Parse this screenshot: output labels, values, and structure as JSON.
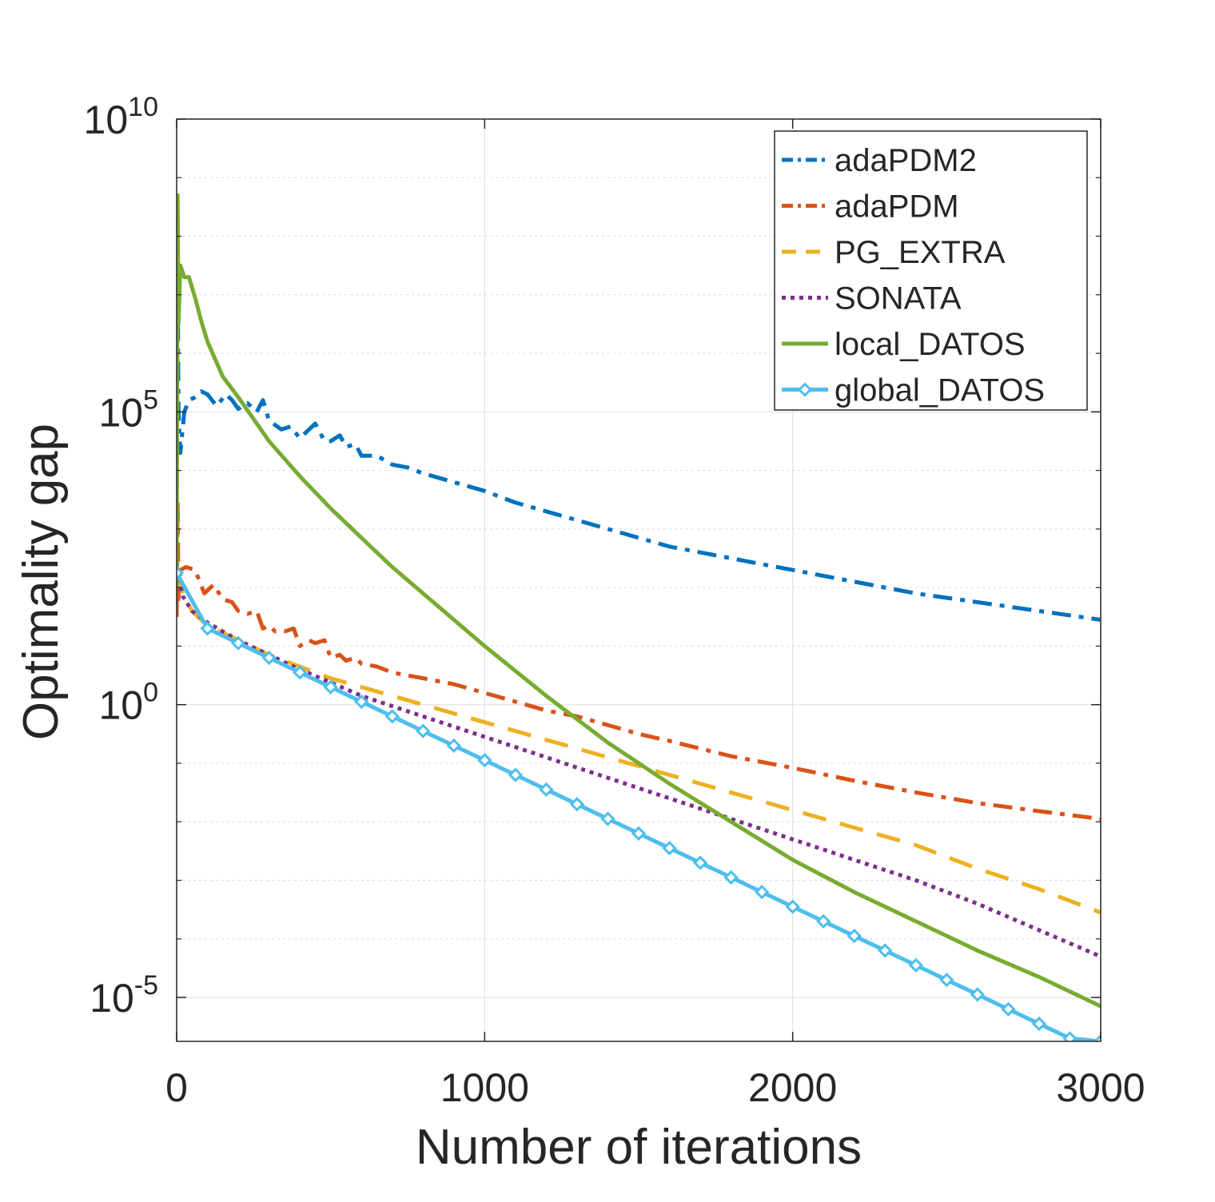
{
  "chart_data": {
    "type": "line",
    "xlabel": "Number of iterations",
    "ylabel": "Optimality gap",
    "xlim": [
      0,
      3000
    ],
    "ylim_log10": [
      -5.75,
      10
    ],
    "yscale": "log",
    "grid": true,
    "legend_position": "top-right",
    "x_ticks": [
      {
        "value": 0,
        "label": "0"
      },
      {
        "value": 1000,
        "label": "1000"
      },
      {
        "value": 2000,
        "label": "2000"
      },
      {
        "value": 3000,
        "label": "3000"
      }
    ],
    "y_ticks": [
      {
        "exp": 10,
        "base": "10",
        "sup": "10"
      },
      {
        "exp": 5,
        "base": "10",
        "sup": "5"
      },
      {
        "exp": 0,
        "base": "10",
        "sup": "0"
      },
      {
        "exp": -5,
        "base": "10",
        "sup": "-5"
      }
    ],
    "series": [
      {
        "name": "adaPDM2",
        "color": "#0072BD",
        "dash": "dashdot",
        "x": [
          0,
          3,
          6,
          12,
          25,
          40,
          60,
          80,
          100,
          130,
          160,
          180,
          200,
          230,
          260,
          280,
          300,
          340,
          370,
          400,
          430,
          450,
          480,
          500,
          530,
          550,
          580,
          600,
          650,
          700,
          750,
          800,
          900,
          1000,
          1100,
          1200,
          1300,
          1400,
          1500,
          1600,
          1700,
          1800,
          1900,
          2000,
          2200,
          2400,
          2600,
          2800,
          3000
        ],
        "log10_y": [
          3,
          7.5,
          5.0,
          4.3,
          5.0,
          5.2,
          5.25,
          5.35,
          5.3,
          5.1,
          5.3,
          5.2,
          5.05,
          5.15,
          5.0,
          5.2,
          4.85,
          4.7,
          4.75,
          4.55,
          4.7,
          4.8,
          4.5,
          4.5,
          4.6,
          4.4,
          4.45,
          4.25,
          4.25,
          4.1,
          4.05,
          3.95,
          3.8,
          3.65,
          3.45,
          3.3,
          3.15,
          3.0,
          2.85,
          2.7,
          2.6,
          2.5,
          2.4,
          2.3,
          2.1,
          1.9,
          1.75,
          1.6,
          1.45
        ]
      },
      {
        "name": "adaPDM",
        "color": "#D95319",
        "dash": "dashdot",
        "x": [
          0,
          3,
          6,
          12,
          30,
          60,
          90,
          120,
          150,
          180,
          200,
          230,
          260,
          280,
          300,
          320,
          350,
          380,
          400,
          430,
          450,
          480,
          500,
          530,
          550,
          580,
          600,
          650,
          700,
          750,
          800,
          900,
          1000,
          1100,
          1200,
          1300,
          1400,
          1500,
          1600,
          1700,
          1800,
          1900,
          2000,
          2200,
          2400,
          2600,
          2800,
          3000
        ],
        "log10_y": [
          1.5,
          3.5,
          1.8,
          2.3,
          2.35,
          2.3,
          1.9,
          2.05,
          1.8,
          1.75,
          1.6,
          1.55,
          1.6,
          1.3,
          1.35,
          1.25,
          1.25,
          1.3,
          1.0,
          1.1,
          1.05,
          1.1,
          0.8,
          0.85,
          0.75,
          0.8,
          0.7,
          0.65,
          0.55,
          0.5,
          0.45,
          0.35,
          0.2,
          0.05,
          -0.1,
          -0.2,
          -0.35,
          -0.5,
          -0.62,
          -0.75,
          -0.88,
          -0.98,
          -1.08,
          -1.3,
          -1.5,
          -1.68,
          -1.82,
          -1.95
        ]
      },
      {
        "name": "PG_EXTRA",
        "color": "#EDB120",
        "dash": "dashed",
        "x": [
          0,
          20,
          50,
          100,
          200,
          300,
          400,
          500,
          600,
          800,
          1000,
          1200,
          1400,
          1600,
          1800,
          2000,
          2200,
          2400,
          2600,
          2800,
          3000
        ],
        "log10_y": [
          2.3,
          1.9,
          1.6,
          1.35,
          1.1,
          0.85,
          0.65,
          0.45,
          0.3,
          0.0,
          -0.3,
          -0.6,
          -0.9,
          -1.2,
          -1.5,
          -1.8,
          -2.1,
          -2.4,
          -2.8,
          -3.15,
          -3.55
        ]
      },
      {
        "name": "SONATA",
        "color": "#7E2F8E",
        "dash": "dotted",
        "x": [
          0,
          20,
          50,
          100,
          200,
          300,
          400,
          500,
          600,
          800,
          1000,
          1200,
          1400,
          1600,
          1800,
          2000,
          2200,
          2400,
          2600,
          2800,
          3000
        ],
        "log10_y": [
          2.3,
          1.85,
          1.6,
          1.4,
          1.1,
          0.85,
          0.6,
          0.38,
          0.15,
          -0.2,
          -0.55,
          -0.9,
          -1.25,
          -1.6,
          -1.95,
          -2.3,
          -2.65,
          -3.0,
          -3.4,
          -3.85,
          -4.3
        ]
      },
      {
        "name": "local_DATOS",
        "color": "#77AC30",
        "dash": "solid",
        "x": [
          0,
          3,
          6,
          12,
          25,
          40,
          60,
          80,
          100,
          150,
          200,
          300,
          400,
          500,
          600,
          700,
          800,
          1000,
          1200,
          1400,
          1600,
          1800,
          2000,
          2200,
          2400,
          2600,
          2800,
          3000
        ],
        "log10_y": [
          2,
          8.7,
          6.5,
          7.5,
          7.3,
          7.3,
          6.95,
          6.55,
          6.2,
          5.6,
          5.25,
          4.5,
          3.9,
          3.35,
          2.85,
          2.35,
          1.9,
          1.0,
          0.15,
          -0.65,
          -1.35,
          -2.0,
          -2.65,
          -3.2,
          -3.7,
          -4.2,
          -4.65,
          -5.15
        ]
      },
      {
        "name": "global_DATOS",
        "color": "#4DBEEE",
        "dash": "solid",
        "markers": true,
        "x": [
          0,
          100,
          200,
          300,
          400,
          500,
          600,
          700,
          800,
          900,
          1000,
          1100,
          1200,
          1300,
          1400,
          1500,
          1600,
          1700,
          1800,
          1900,
          2000,
          2100,
          2200,
          2300,
          2400,
          2500,
          2600,
          2700,
          2800,
          2900,
          3000
        ],
        "log10_y": [
          2.25,
          1.3,
          1.05,
          0.8,
          0.55,
          0.3,
          0.05,
          -0.2,
          -0.45,
          -0.7,
          -0.95,
          -1.2,
          -1.45,
          -1.7,
          -1.95,
          -2.2,
          -2.45,
          -2.7,
          -2.95,
          -3.2,
          -3.45,
          -3.7,
          -3.95,
          -4.2,
          -4.45,
          -4.7,
          -4.95,
          -5.2,
          -5.45,
          -5.7,
          -5.75
        ]
      }
    ]
  }
}
